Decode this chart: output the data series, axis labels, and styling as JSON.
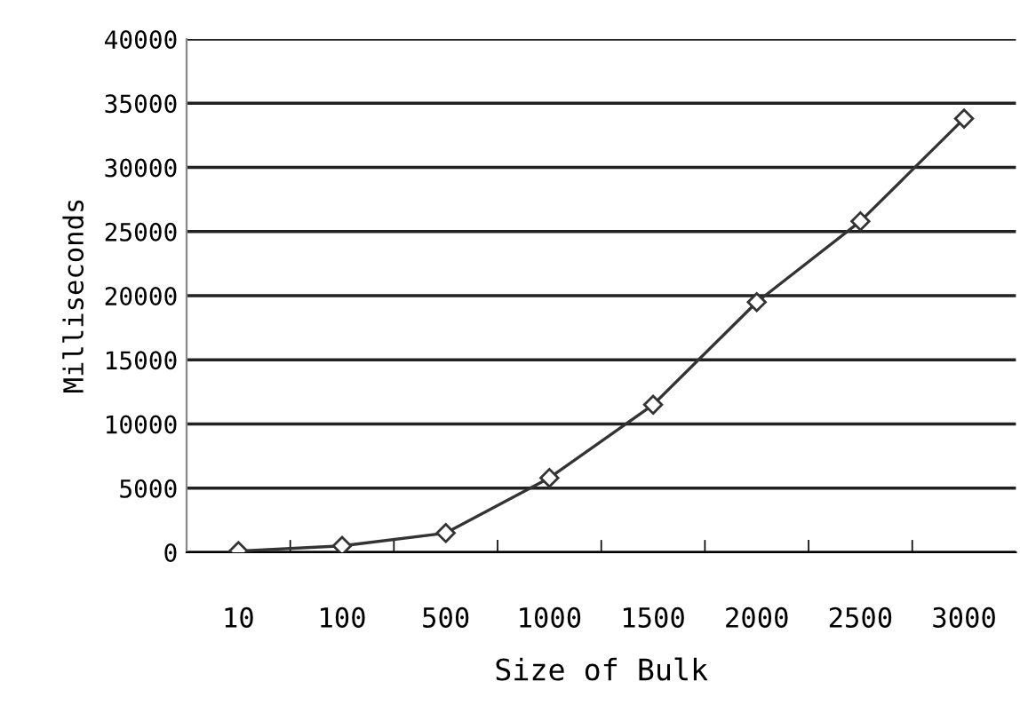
{
  "chart_data": {
    "type": "line",
    "xlabel": "Size of Bulk",
    "ylabel": "Milliseconds",
    "categories": [
      "10",
      "100",
      "500",
      "1000",
      "1500",
      "2000",
      "2500",
      "3000"
    ],
    "series": [
      {
        "color": "#333333",
        "values": [
          100,
          500,
          1500,
          5800,
          11500,
          19500,
          25800,
          33800
        ]
      }
    ],
    "ylim": [
      0,
      40000
    ],
    "yticks": [
      0,
      5000,
      10000,
      15000,
      20000,
      25000,
      30000,
      35000,
      40000
    ],
    "grid": "y",
    "marker": "diamond",
    "line_style": "solid"
  }
}
